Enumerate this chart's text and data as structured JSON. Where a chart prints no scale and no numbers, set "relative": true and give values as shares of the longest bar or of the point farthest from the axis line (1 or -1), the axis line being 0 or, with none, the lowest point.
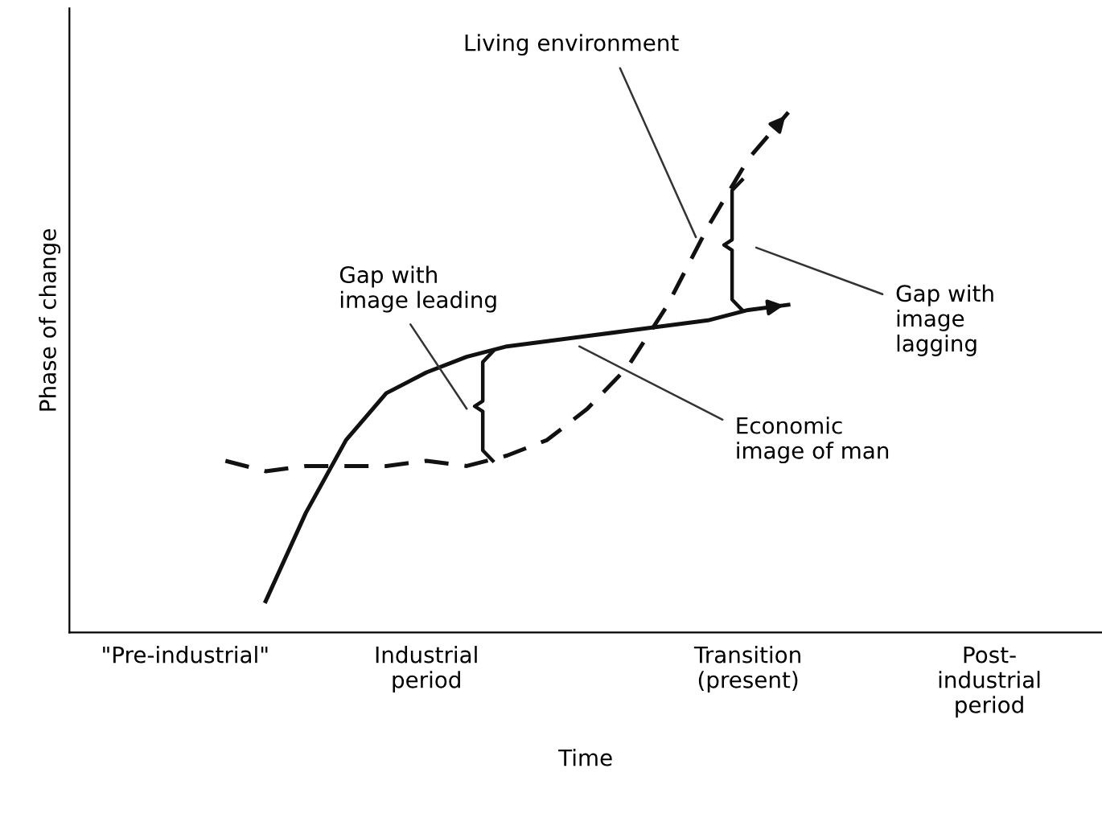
{
  "chart_data": {
    "type": "line",
    "relative": true,
    "xlabel": "Time",
    "ylabel": "Phase of change",
    "categories": [
      "\"Pre-industrial\"",
      null,
      null,
      null,
      null,
      null,
      "Industrial\nperiod",
      null,
      null,
      null,
      null,
      null,
      null,
      null,
      "Transition\n(present)",
      null,
      null,
      null,
      null,
      null,
      "Post-\nindustrial\nperiod"
    ],
    "series": [
      {
        "color": "#111111",
        "line_style": "solid",
        "values": [
          null,
          null,
          0.06,
          0.23,
          0.37,
          0.46,
          0.5,
          0.53,
          0.55,
          0.56,
          0.57,
          0.58,
          0.59,
          0.6,
          0.62,
          0.63,
          null,
          null,
          null,
          null,
          null
        ]
      },
      {
        "color": "#111111",
        "line_style": "dashed",
        "values": [
          null,
          0.33,
          0.31,
          0.32,
          0.32,
          0.32,
          0.33,
          0.32,
          0.34,
          0.37,
          0.43,
          0.51,
          0.63,
          0.78,
          0.91,
          1.0,
          null,
          null,
          null,
          null,
          null
        ]
      }
    ],
    "annotations": [
      "Living environment",
      "Gap with\nimage leading",
      "Gap with\nimage\nlagging",
      "Economic\nimage of man"
    ],
    "grid": false,
    "legend": false,
    "marker": "none"
  }
}
